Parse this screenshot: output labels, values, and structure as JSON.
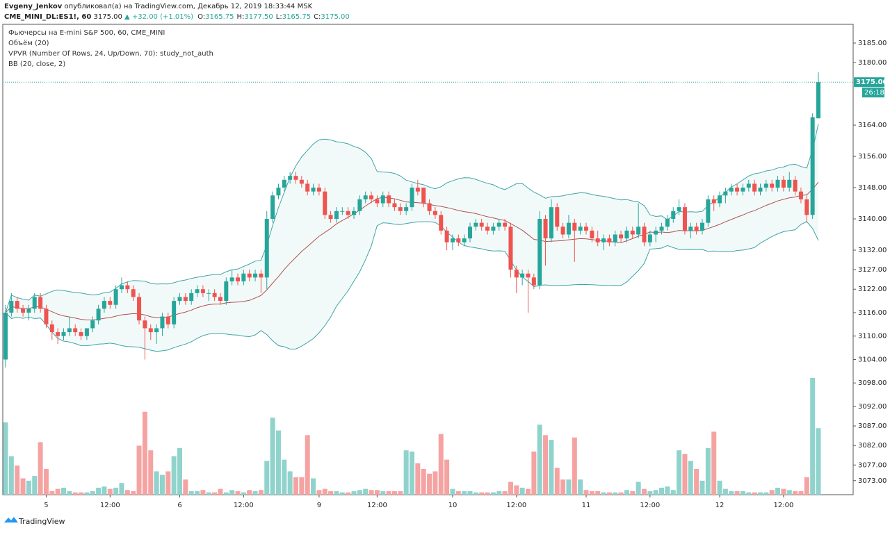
{
  "header": {
    "publisher": "Evgeny_Jenkov",
    "published": "опубликовал(а) на TradingView.com, Декабрь 12, 2019 18:33:44 MSK",
    "symbol": "CME_MINI_DL:ES1!, 60",
    "price": "3175.00",
    "change": "▲ +32.00 (+1.01%)",
    "ohlc": [
      {
        "k": "O:",
        "v": "3165.75"
      },
      {
        "k": "H:",
        "v": "3177.50"
      },
      {
        "k": "L:",
        "v": "3165.75"
      },
      {
        "k": "C:",
        "v": "3175.00"
      }
    ]
  },
  "legend": [
    "Фьючерсы на E-mini S&P 500, 60, CME_MINI",
    "Объём (20)",
    "VPVR (Number Of Rows, 24, Up/Down, 70): study_not_auth",
    "BB (20, close, 2)"
  ],
  "footer": "TradingView",
  "chart_data": {
    "type": "candlestick",
    "up_color": "#26a69a",
    "down_color": "#ef5350",
    "up_volume_color": "#8fd3cc",
    "down_volume_color": "#f5a3a2",
    "band_color": "#3fa3a8",
    "basis_color": "#b05050",
    "bb_period": 20,
    "bb_mult": 2,
    "last_price_label": "3175.00",
    "countdown": "26:18",
    "ylim": [
      3069.4,
      3189.8
    ],
    "yticks": [
      {
        "value": 3185,
        "label": "3185.00"
      },
      {
        "value": 3180,
        "label": "3180.00"
      },
      {
        "value": 3164,
        "label": "3164.00"
      },
      {
        "value": 3156,
        "label": "3156.00"
      },
      {
        "value": 3148,
        "label": "3148.00"
      },
      {
        "value": 3140,
        "label": "3140.00"
      },
      {
        "value": 3132,
        "label": "3132.00"
      },
      {
        "value": 3127,
        "label": "3127.00"
      },
      {
        "value": 3122,
        "label": "3122.00"
      },
      {
        "value": 3116,
        "label": "3116.00"
      },
      {
        "value": 3110,
        "label": "3110.00"
      },
      {
        "value": 3104,
        "label": "3104.00"
      },
      {
        "value": 3098,
        "label": "3098.00"
      },
      {
        "value": 3092,
        "label": "3092.00"
      },
      {
        "value": 3087,
        "label": "3087.00"
      },
      {
        "value": 3082,
        "label": "3082.00"
      },
      {
        "value": 3077,
        "label": "3077.00"
      },
      {
        "value": 3073,
        "label": "3073.00"
      }
    ],
    "xticks": [
      {
        "value": 7,
        "label": "5"
      },
      {
        "value": 18,
        "label": "12:00"
      },
      {
        "value": 30,
        "label": "6"
      },
      {
        "value": 41,
        "label": "12:00"
      },
      {
        "value": 54,
        "label": "9"
      },
      {
        "value": 64,
        "label": "12:00"
      },
      {
        "value": 77,
        "label": "10"
      },
      {
        "value": 88,
        "label": "12:00"
      },
      {
        "value": 100,
        "label": "11"
      },
      {
        "value": 111,
        "label": "12:00"
      },
      {
        "value": 123,
        "label": "12"
      },
      {
        "value": 134,
        "label": "12:00"
      }
    ],
    "ohlc": [
      [
        3104,
        3118,
        3102,
        3116
      ],
      [
        3116,
        3121,
        3115,
        3119
      ],
      [
        3119,
        3120,
        3116,
        3117
      ],
      [
        3117,
        3118,
        3115,
        3116
      ],
      [
        3116,
        3118,
        3114,
        3117
      ],
      [
        3117,
        3121,
        3116,
        3120
      ],
      [
        3120,
        3121,
        3116,
        3117
      ],
      [
        3117,
        3118,
        3112,
        3113
      ],
      [
        3113,
        3114,
        3109,
        3111
      ],
      [
        3111,
        3112,
        3108,
        3110
      ],
      [
        3110,
        3112,
        3109,
        3111
      ],
      [
        3111,
        3115,
        3110,
        3112
      ],
      [
        3112,
        3113,
        3110,
        3111
      ],
      [
        3111,
        3112,
        3109,
        3110
      ],
      [
        3110,
        3112,
        3109,
        3112
      ],
      [
        3112,
        3115,
        3111,
        3114
      ],
      [
        3114,
        3118,
        3113,
        3117
      ],
      [
        3117,
        3120,
        3116,
        3119
      ],
      [
        3119,
        3120,
        3117,
        3118
      ],
      [
        3118,
        3123,
        3117,
        3122
      ],
      [
        3122,
        3125,
        3121,
        3123
      ],
      [
        3123,
        3124,
        3121,
        3122
      ],
      [
        3122,
        3123,
        3119,
        3120
      ],
      [
        3120,
        3121,
        3113,
        3114
      ],
      [
        3114,
        3115,
        3104,
        3112
      ],
      [
        3112,
        3113,
        3109,
        3111
      ],
      [
        3111,
        3113,
        3108,
        3112
      ],
      [
        3112,
        3116,
        3110,
        3115
      ],
      [
        3115,
        3116,
        3112,
        3113
      ],
      [
        3113,
        3120,
        3112,
        3119
      ],
      [
        3119,
        3121,
        3118,
        3120
      ],
      [
        3120,
        3121,
        3118,
        3119
      ],
      [
        3119,
        3122,
        3118,
        3121
      ],
      [
        3121,
        3123,
        3120,
        3122
      ],
      [
        3122,
        3123,
        3120,
        3121
      ],
      [
        3121,
        3122,
        3119,
        3121
      ],
      [
        3121,
        3122,
        3119,
        3120
      ],
      [
        3120,
        3121,
        3118,
        3119
      ],
      [
        3119,
        3125,
        3118,
        3124
      ],
      [
        3124,
        3127,
        3123,
        3125
      ],
      [
        3125,
        3126,
        3123,
        3124
      ],
      [
        3124,
        3127,
        3123,
        3126
      ],
      [
        3126,
        3127,
        3124,
        3125
      ],
      [
        3125,
        3127,
        3124,
        3126
      ],
      [
        3126,
        3127,
        3121,
        3125
      ],
      [
        3125,
        3142,
        3122,
        3140
      ],
      [
        3140,
        3147,
        3139,
        3146
      ],
      [
        3146,
        3149,
        3145,
        3148
      ],
      [
        3148,
        3151,
        3147,
        3150
      ],
      [
        3150,
        3152,
        3149,
        3151
      ],
      [
        3151,
        3152,
        3149,
        3150
      ],
      [
        3150,
        3151,
        3148,
        3149
      ],
      [
        3149,
        3150,
        3146,
        3147
      ],
      [
        3147,
        3149,
        3146,
        3148
      ],
      [
        3148,
        3149,
        3146,
        3147
      ],
      [
        3147,
        3148,
        3140,
        3141
      ],
      [
        3141,
        3142,
        3139,
        3140
      ],
      [
        3140,
        3143,
        3139,
        3142
      ],
      [
        3142,
        3143,
        3141,
        3142
      ],
      [
        3142,
        3143,
        3140,
        3141
      ],
      [
        3141,
        3143,
        3140,
        3142
      ],
      [
        3142,
        3146,
        3141,
        3145
      ],
      [
        3145,
        3147,
        3144,
        3146
      ],
      [
        3146,
        3147,
        3144,
        3145
      ],
      [
        3145,
        3146,
        3143,
        3144
      ],
      [
        3144,
        3147,
        3143,
        3146
      ],
      [
        3146,
        3147,
        3143,
        3144
      ],
      [
        3144,
        3145,
        3142,
        3143
      ],
      [
        3143,
        3144,
        3141,
        3142
      ],
      [
        3142,
        3144,
        3141,
        3143
      ],
      [
        3143,
        3149,
        3142,
        3148
      ],
      [
        3148,
        3150,
        3146,
        3147
      ],
      [
        3148,
        3148,
        3143,
        3144
      ],
      [
        3144,
        3145,
        3141,
        3142
      ],
      [
        3142,
        3143,
        3140,
        3141
      ],
      [
        3141,
        3142,
        3136,
        3137
      ],
      [
        3137,
        3138,
        3132,
        3134
      ],
      [
        3134,
        3136,
        3132,
        3135
      ],
      [
        3135,
        3136,
        3133,
        3134
      ],
      [
        3134,
        3136,
        3133,
        3135
      ],
      [
        3135,
        3139,
        3134,
        3138
      ],
      [
        3138,
        3140,
        3137,
        3139
      ],
      [
        3139,
        3140,
        3137,
        3138
      ],
      [
        3138,
        3139,
        3136,
        3137
      ],
      [
        3137,
        3139,
        3136,
        3138
      ],
      [
        3138,
        3140,
        3137,
        3139
      ],
      [
        3139,
        3140,
        3137,
        3138
      ],
      [
        3138,
        3139,
        3125,
        3127
      ],
      [
        3127,
        3128,
        3121,
        3125
      ],
      [
        3125,
        3127,
        3123,
        3126
      ],
      [
        3126,
        3127,
        3116,
        3125
      ],
      [
        3125,
        3126,
        3122,
        3123
      ],
      [
        3123,
        3142,
        3122,
        3140
      ],
      [
        3140,
        3141,
        3128,
        3135
      ],
      [
        3135,
        3145,
        3134,
        3143
      ],
      [
        3143,
        3144,
        3137,
        3138
      ],
      [
        3138,
        3139,
        3135,
        3136
      ],
      [
        3136,
        3141,
        3135,
        3139
      ],
      [
        3139,
        3140,
        3129,
        3137
      ],
      [
        3137,
        3139,
        3136,
        3138
      ],
      [
        3138,
        3139,
        3136,
        3137
      ],
      [
        3137,
        3138,
        3134,
        3135
      ],
      [
        3135,
        3137,
        3133,
        3134
      ],
      [
        3134,
        3136,
        3132,
        3135
      ],
      [
        3135,
        3136,
        3133,
        3134
      ],
      [
        3134,
        3137,
        3133,
        3136
      ],
      [
        3136,
        3137,
        3134,
        3135
      ],
      [
        3135,
        3138,
        3134,
        3137
      ],
      [
        3137,
        3138,
        3135,
        3136
      ],
      [
        3136,
        3144,
        3135,
        3138
      ],
      [
        3138,
        3139,
        3133,
        3134
      ],
      [
        3134,
        3137,
        3133,
        3136
      ],
      [
        3136,
        3138,
        3134,
        3137
      ],
      [
        3137,
        3139,
        3136,
        3138
      ],
      [
        3138,
        3141,
        3137,
        3140
      ],
      [
        3140,
        3143,
        3139,
        3142
      ],
      [
        3142,
        3145,
        3141,
        3143
      ],
      [
        3143,
        3144,
        3136,
        3137
      ],
      [
        3137,
        3139,
        3135,
        3138
      ],
      [
        3138,
        3139,
        3136,
        3137
      ],
      [
        3137,
        3140,
        3136,
        3139
      ],
      [
        3139,
        3146,
        3138,
        3145
      ],
      [
        3145,
        3146,
        3142,
        3144
      ],
      [
        3144,
        3147,
        3143,
        3146
      ],
      [
        3146,
        3148,
        3144,
        3147
      ],
      [
        3147,
        3149,
        3146,
        3148
      ],
      [
        3148,
        3149,
        3146,
        3147
      ],
      [
        3147,
        3149,
        3146,
        3148
      ],
      [
        3148,
        3150,
        3147,
        3149
      ],
      [
        3149,
        3150,
        3146,
        3147
      ],
      [
        3147,
        3149,
        3146,
        3148
      ],
      [
        3148,
        3150,
        3147,
        3149
      ],
      [
        3149,
        3150,
        3147,
        3148
      ],
      [
        3148,
        3151,
        3147,
        3150
      ],
      [
        3150,
        3151,
        3147,
        3148
      ],
      [
        3148,
        3152,
        3147,
        3150
      ],
      [
        3150,
        3151,
        3146,
        3147
      ],
      [
        3147,
        3148,
        3144,
        3145
      ],
      [
        3145,
        3146,
        3139,
        3141
      ],
      [
        3141,
        3167,
        3140,
        3166
      ],
      [
        3165.75,
        3177.5,
        3165.75,
        3175
      ]
    ],
    "volume": [
      62,
      33,
      25,
      14,
      12,
      16,
      45,
      22,
      3,
      5,
      6,
      3,
      2,
      2,
      2,
      3,
      6,
      7,
      5,
      6,
      10,
      4,
      3,
      42,
      71,
      38,
      20,
      17,
      20,
      33,
      40,
      13,
      3,
      3,
      4,
      2,
      2,
      5,
      2,
      4,
      3,
      2,
      4,
      3,
      4,
      29,
      66,
      55,
      30,
      20,
      15,
      15,
      51,
      14,
      4,
      5,
      3,
      3,
      2,
      2,
      3,
      4,
      5,
      4,
      4,
      3,
      3,
      3,
      3,
      38,
      37,
      27,
      22,
      18,
      20,
      52,
      30,
      5,
      3,
      3,
      3,
      2,
      2,
      2,
      2,
      3,
      3,
      11,
      8,
      6,
      5,
      37,
      60,
      51,
      47,
      23,
      13,
      13,
      49,
      13,
      4,
      3,
      3,
      2,
      2,
      2,
      2,
      4,
      3,
      11,
      5,
      3,
      4,
      6,
      7,
      4,
      38,
      35,
      29,
      22,
      12,
      40,
      54,
      12,
      5,
      3,
      3,
      3,
      2,
      2,
      2,
      2,
      4,
      6,
      5,
      4,
      3,
      3,
      15,
      100,
      57
    ]
  }
}
